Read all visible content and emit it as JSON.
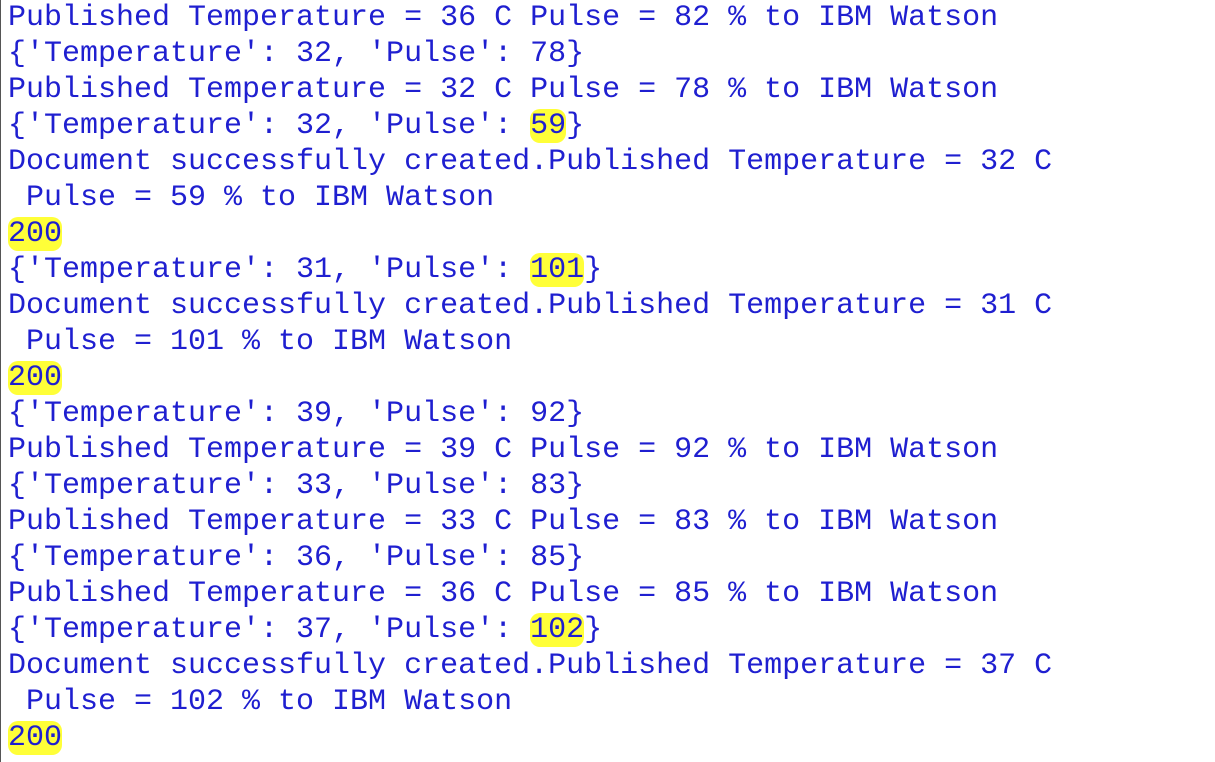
{
  "console": {
    "lines": [
      {
        "segments": [
          {
            "text": "Published Temperature = 36 C Pulse = 82 % to IBM Watson"
          }
        ]
      },
      {
        "segments": [
          {
            "text": "{'Temperature': 32, 'Pulse': 78}"
          }
        ]
      },
      {
        "segments": [
          {
            "text": "Published Temperature = 32 C Pulse = 78 % to IBM Watson"
          }
        ]
      },
      {
        "segments": [
          {
            "text": "{'Temperature': 32, 'Pulse': "
          },
          {
            "text": "59",
            "highlight": true
          },
          {
            "text": "}"
          }
        ]
      },
      {
        "segments": [
          {
            "text": "Document successfully created.Published Temperature = 32 C"
          }
        ]
      },
      {
        "segments": [
          {
            "text": " Pulse = 59 % to IBM Watson"
          }
        ]
      },
      {
        "segments": [
          {
            "text": "200",
            "highlight": true
          }
        ]
      },
      {
        "segments": [
          {
            "text": "{'Temperature': 31, 'Pulse': "
          },
          {
            "text": "101",
            "highlight": true
          },
          {
            "text": "}"
          }
        ]
      },
      {
        "segments": [
          {
            "text": "Document successfully created.Published Temperature = 31 C"
          }
        ]
      },
      {
        "segments": [
          {
            "text": " Pulse = 101 % to IBM Watson"
          }
        ]
      },
      {
        "segments": [
          {
            "text": "200",
            "highlight": true
          }
        ]
      },
      {
        "segments": [
          {
            "text": "{'Temperature': 39, 'Pulse': 92}"
          }
        ]
      },
      {
        "segments": [
          {
            "text": "Published Temperature = 39 C Pulse = 92 % to IBM Watson"
          }
        ]
      },
      {
        "segments": [
          {
            "text": "{'Temperature': 33, 'Pulse': 83}"
          }
        ]
      },
      {
        "segments": [
          {
            "text": "Published Temperature = 33 C Pulse = 83 % to IBM Watson"
          }
        ]
      },
      {
        "segments": [
          {
            "text": "{'Temperature': 36, 'Pulse': 85}"
          }
        ]
      },
      {
        "segments": [
          {
            "text": "Published Temperature = 36 C Pulse = 85 % to IBM Watson"
          }
        ]
      },
      {
        "segments": [
          {
            "text": "{'Temperature': 37, 'Pulse': "
          },
          {
            "text": "102",
            "highlight": true
          },
          {
            "text": "}"
          }
        ]
      },
      {
        "segments": [
          {
            "text": "Document successfully created.Published Temperature = 37 C"
          }
        ]
      },
      {
        "segments": [
          {
            "text": " Pulse = 102 % to IBM Watson"
          }
        ]
      },
      {
        "segments": [
          {
            "text": "200",
            "highlight": true
          }
        ]
      }
    ]
  },
  "colors": {
    "text": "#1f1fd0",
    "highlight": "#ffff38",
    "background": "#ffffff"
  }
}
